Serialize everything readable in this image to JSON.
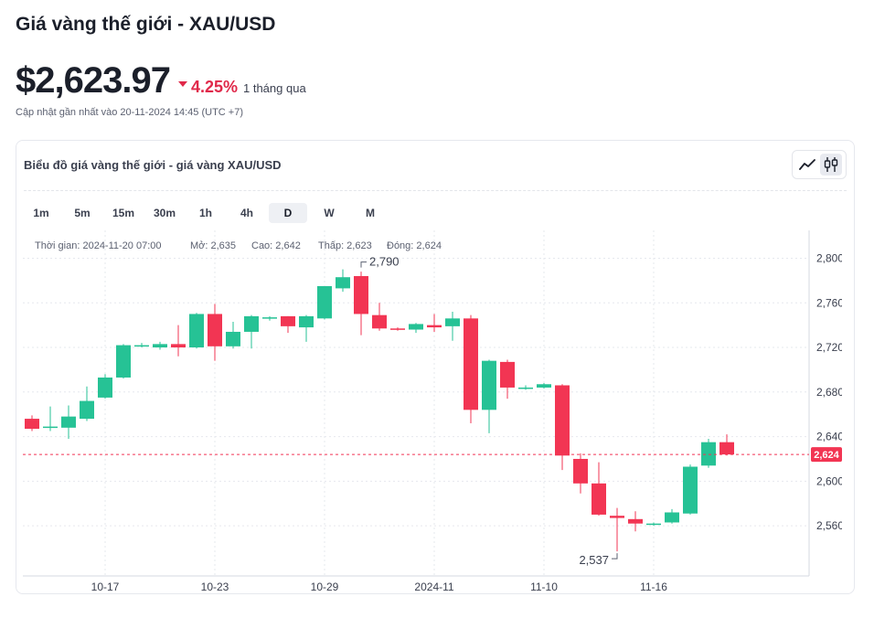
{
  "header": {
    "title": "Giá vàng thế giới - XAU/USD",
    "price": "$2,623.97",
    "change_pct": "4.25%",
    "change_period": "1 tháng qua",
    "updated": "Cập nhật gần nhất vào 20-11-2024 14:45 (UTC +7)"
  },
  "card": {
    "title": "Biểu đồ giá vàng thế giới - giá vàng XAU/USD",
    "chart_type_icons": [
      "line-chart-icon",
      "candlestick-icon"
    ],
    "active_chart_type": "candlestick-icon",
    "intervals": [
      "1m",
      "5m",
      "15m",
      "30m",
      "1h",
      "4h",
      "D",
      "W",
      "M"
    ],
    "active_interval": "D"
  },
  "colors": {
    "up": "#26c295",
    "down": "#f23553",
    "grid": "#e6e8ee",
    "accent": "#e0294a"
  },
  "chart_data": {
    "type": "candlestick",
    "ohlc_legend": {
      "time": "Thời gian: 2024-11-20 07:00",
      "open": "Mở: 2,635",
      "high": "Cao: 2,642",
      "low": "Thấp: 2,623",
      "close": "Đóng: 2,624"
    },
    "x_tick_labels": [
      {
        "label": "10-17",
        "index": 4
      },
      {
        "label": "10-23",
        "index": 10
      },
      {
        "label": "10-29",
        "index": 16
      },
      {
        "label": "2024-11",
        "index": 22
      },
      {
        "label": "11-10",
        "index": 28
      },
      {
        "label": "11-16",
        "index": 34
      }
    ],
    "ylim": [
      2515,
      2825
    ],
    "y_ticks": [
      2800,
      2760,
      2720,
      2680,
      2640,
      2600,
      2560
    ],
    "y_tick_labels": [
      "2,800",
      "2,760",
      "2,720",
      "2,680",
      "2,640",
      "2,600",
      "2,560"
    ],
    "current_price": 2624,
    "current_price_label": "2,624",
    "annotations": [
      {
        "text": "2,790",
        "index": 18,
        "value": 2790,
        "position": "above"
      },
      {
        "text": "2,537",
        "index": 32,
        "value": 2537,
        "position": "below"
      }
    ],
    "candles": [
      {
        "o": 2656,
        "h": 2659,
        "l": 2645,
        "c": 2647
      },
      {
        "o": 2648,
        "h": 2667,
        "l": 2645,
        "c": 2649
      },
      {
        "o": 2648,
        "h": 2668,
        "l": 2638,
        "c": 2658
      },
      {
        "o": 2656,
        "h": 2685,
        "l": 2654,
        "c": 2672
      },
      {
        "o": 2675,
        "h": 2696,
        "l": 2674,
        "c": 2693
      },
      {
        "o": 2693,
        "h": 2723,
        "l": 2692,
        "c": 2722
      },
      {
        "o": 2721,
        "h": 2724,
        "l": 2720,
        "c": 2722
      },
      {
        "o": 2720,
        "h": 2725,
        "l": 2718,
        "c": 2723
      },
      {
        "o": 2723,
        "h": 2740,
        "l": 2712,
        "c": 2720
      },
      {
        "o": 2720,
        "h": 2751,
        "l": 2719,
        "c": 2750
      },
      {
        "o": 2750,
        "h": 2759,
        "l": 2708,
        "c": 2721
      },
      {
        "o": 2721,
        "h": 2743,
        "l": 2719,
        "c": 2734
      },
      {
        "o": 2734,
        "h": 2749,
        "l": 2719,
        "c": 2748
      },
      {
        "o": 2746,
        "h": 2748,
        "l": 2744,
        "c": 2747
      },
      {
        "o": 2748,
        "h": 2748,
        "l": 2733,
        "c": 2739
      },
      {
        "o": 2738,
        "h": 2749,
        "l": 2725,
        "c": 2748
      },
      {
        "o": 2746,
        "h": 2775,
        "l": 2745,
        "c": 2775
      },
      {
        "o": 2773,
        "h": 2790,
        "l": 2770,
        "c": 2783
      },
      {
        "o": 2784,
        "h": 2788,
        "l": 2731,
        "c": 2750
      },
      {
        "o": 2749,
        "h": 2760,
        "l": 2735,
        "c": 2737
      },
      {
        "o": 2737,
        "h": 2738,
        "l": 2735,
        "c": 2736
      },
      {
        "o": 2736,
        "h": 2742,
        "l": 2733,
        "c": 2741
      },
      {
        "o": 2740,
        "h": 2750,
        "l": 2734,
        "c": 2738
      },
      {
        "o": 2739,
        "h": 2752,
        "l": 2726,
        "c": 2746
      },
      {
        "o": 2746,
        "h": 2749,
        "l": 2652,
        "c": 2664
      },
      {
        "o": 2664,
        "h": 2709,
        "l": 2643,
        "c": 2708
      },
      {
        "o": 2707,
        "h": 2709,
        "l": 2674,
        "c": 2684
      },
      {
        "o": 2684,
        "h": 2686,
        "l": 2682,
        "c": 2684
      },
      {
        "o": 2684,
        "h": 2688,
        "l": 2683,
        "c": 2687
      },
      {
        "o": 2686,
        "h": 2687,
        "l": 2610,
        "c": 2623
      },
      {
        "o": 2620,
        "h": 2625,
        "l": 2589,
        "c": 2598
      },
      {
        "o": 2598,
        "h": 2617,
        "l": 2569,
        "c": 2570
      },
      {
        "o": 2569,
        "h": 2576,
        "l": 2537,
        "c": 2567
      },
      {
        "o": 2566,
        "h": 2573,
        "l": 2555,
        "c": 2562
      },
      {
        "o": 2562,
        "h": 2563,
        "l": 2560,
        "c": 2562
      },
      {
        "o": 2563,
        "h": 2575,
        "l": 2562,
        "c": 2572
      },
      {
        "o": 2571,
        "h": 2615,
        "l": 2570,
        "c": 2613
      },
      {
        "o": 2614,
        "h": 2638,
        "l": 2612,
        "c": 2635
      },
      {
        "o": 2635,
        "h": 2642,
        "l": 2623,
        "c": 2624
      }
    ]
  }
}
